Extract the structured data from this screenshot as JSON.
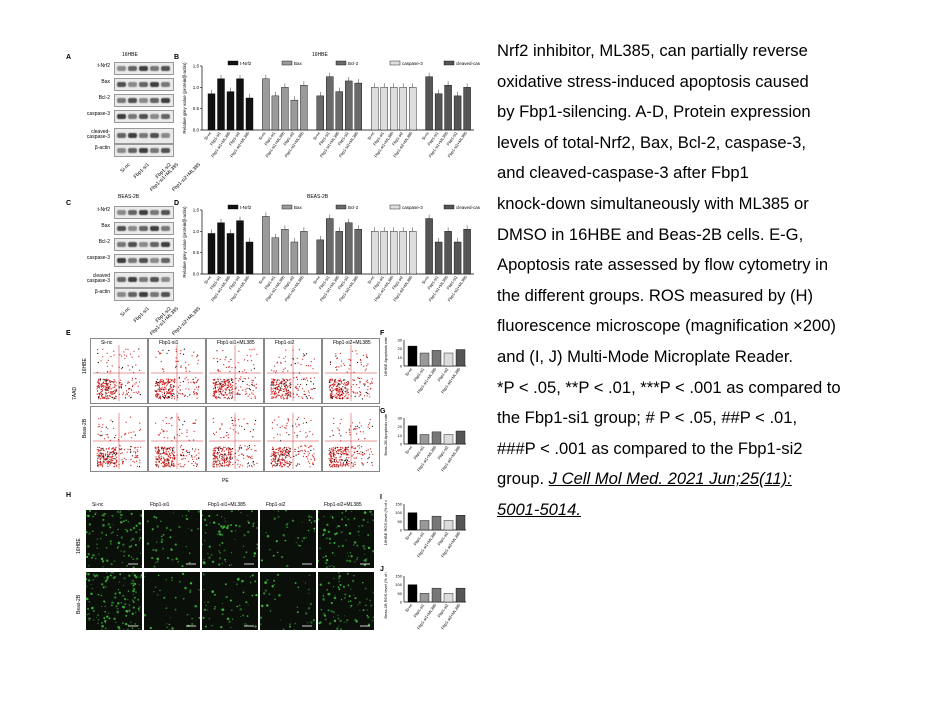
{
  "panels": {
    "A": {
      "letter": "A",
      "title": "16HBE",
      "rows": [
        "t-Nrf2",
        "Bax",
        "Bcl-2",
        "caspase-3",
        "cleaved-caspase-3",
        "β-actin"
      ]
    },
    "B": {
      "letter": "B",
      "title": "16HBE",
      "ylabel": "Relative grey value (protein/β-actin)"
    },
    "C": {
      "letter": "C",
      "title": "BEAS-2B",
      "rows": [
        "t-Nrf2",
        "Bax",
        "Bcl-2",
        "caspase-3",
        "cleaved caspase-3",
        "β-actin"
      ]
    },
    "D": {
      "letter": "D",
      "title": "BEAS-2B",
      "ylabel": "Relative grey value (protein/β-actin)"
    },
    "E": {
      "letter": "E",
      "xlabel": "PE",
      "ylabel": "7AAD",
      "row_labels": [
        "16HBE",
        "Beas-2B"
      ]
    },
    "F": {
      "letter": "F",
      "ylabel": "16HBE Apoptosis rate (%)"
    },
    "G": {
      "letter": "G",
      "ylabel": "Beas-2B Apoptosis rate (%)"
    },
    "H": {
      "letter": "H",
      "row_labels": [
        "16HBE",
        "Beas-2B"
      ]
    },
    "I": {
      "letter": "I",
      "ylabel": "16HBE ROS level (% of control)"
    },
    "J": {
      "letter": "J",
      "ylabel": "Beas-2B ROS level (% of control)"
    }
  },
  "groups": [
    "Si-nc",
    "Fbp1-si1",
    "Fbp1-si1+ML385",
    "Fbp1-si2",
    "Fbp1-si2+ML385"
  ],
  "legend": [
    "t-Nrf2",
    "Bax",
    "Bcl-2",
    "caspase-3",
    "cleaved-caspase3"
  ],
  "chart_data": [
    {
      "type": "bar",
      "title": "16HBE",
      "categories": [
        "Si-nc",
        "Fbp1-si1",
        "Fbp1-si1+ML385",
        "Fbp1-si2",
        "Fbp1-si2+ML385"
      ],
      "series": [
        {
          "name": "t-Nrf2",
          "values": [
            0.85,
            1.2,
            0.9,
            1.2,
            0.75
          ]
        },
        {
          "name": "Bax",
          "values": [
            1.2,
            0.8,
            1.0,
            0.7,
            1.05
          ]
        },
        {
          "name": "Bcl-2",
          "values": [
            0.8,
            1.25,
            0.9,
            1.15,
            1.1
          ]
        },
        {
          "name": "caspase-3",
          "values": [
            1.0,
            1.0,
            1.0,
            1.0,
            1.0
          ]
        },
        {
          "name": "cleaved-caspase3",
          "values": [
            1.25,
            0.85,
            1.05,
            0.8,
            1.0
          ]
        }
      ],
      "ylim": [
        0,
        1.5
      ]
    },
    {
      "type": "bar",
      "title": "BEAS-2B",
      "categories": [
        "Si-nc",
        "Fbp1-si1",
        "Fbp1-si1+ML385",
        "Fbp1-si2",
        "Fbp1-si2+ML385"
      ],
      "series": [
        {
          "name": "t-Nrf2",
          "values": [
            0.95,
            1.2,
            0.95,
            1.25,
            0.75
          ]
        },
        {
          "name": "Bax",
          "values": [
            1.35,
            0.85,
            1.05,
            0.75,
            1.0
          ]
        },
        {
          "name": "Bcl-2",
          "values": [
            0.8,
            1.3,
            1.0,
            1.2,
            1.05
          ]
        },
        {
          "name": "caspase-3",
          "values": [
            1.0,
            1.0,
            1.0,
            1.0,
            1.0
          ]
        },
        {
          "name": "cleaved-caspase3",
          "values": [
            1.3,
            0.75,
            1.0,
            0.75,
            1.05
          ]
        }
      ],
      "ylim": [
        0,
        1.5
      ]
    },
    {
      "type": "bar",
      "categories": [
        "Si-nc",
        "Fbp1-si1",
        "Fbp1-si1+ML385",
        "Fbp1-si2",
        "Fbp1-si2+ML385"
      ],
      "values": [
        23,
        15,
        18,
        15,
        19
      ],
      "ylim": [
        0,
        30
      ]
    },
    {
      "type": "bar",
      "categories": [
        "Si-nc",
        "Fbp1-si1",
        "Fbp1-si1+ML385",
        "Fbp1-si2",
        "Fbp1-si2+ML385"
      ],
      "values": [
        21,
        11,
        14,
        11,
        15
      ],
      "ylim": [
        0,
        30
      ]
    },
    {
      "type": "bar",
      "categories": [
        "Si-nc",
        "Fbp1-si1",
        "Fbp1-si1+ML385",
        "Fbp1-si2",
        "Fbp1-si2+ML385"
      ],
      "values": [
        100,
        55,
        80,
        55,
        85
      ],
      "ylim": [
        0,
        150
      ]
    },
    {
      "type": "bar",
      "categories": [
        "Si-nc",
        "Fbp1-si1",
        "Fbp1-si1+ML385",
        "Fbp1-si2",
        "Fbp1-si2+ML385"
      ],
      "values": [
        100,
        50,
        80,
        50,
        80
      ],
      "ylim": [
        0,
        150
      ]
    }
  ],
  "caption": {
    "lines": [
      "Nrf2 inhibitor, ML385, can partially reverse",
      "oxidative stress-induced apoptosis caused",
      "by Fbp1-silencing. A-D, Protein expression",
      "levels of total-Nrf2, Bax, Bcl-2, caspase-3,",
      "and cleaved-caspase-3 after Fbp1",
      "knock-down simultaneously with ML385 or",
      "DMSO in 16HBE and Beas-2B cells. E-G,",
      "Apoptosis rate assessed by flow cytometry in",
      "the different groups. ROS measured by (H)",
      "fluorescence microscope (magnification ×200)",
      "and (I, J) Multi-Mode Microplate Reader.",
      "*P < .05, **P < .01, ***P < .001 as compared to",
      "the Fbp1-si1 group; # P < .05, ##P < .01,",
      "###P < .001 as compared to the Fbp1-si2"
    ],
    "last_prefix": "group. ",
    "citation_part1": "J Cell Mol Med. 2021 Jun;25(11):",
    "citation_part2": "5001-5014."
  }
}
